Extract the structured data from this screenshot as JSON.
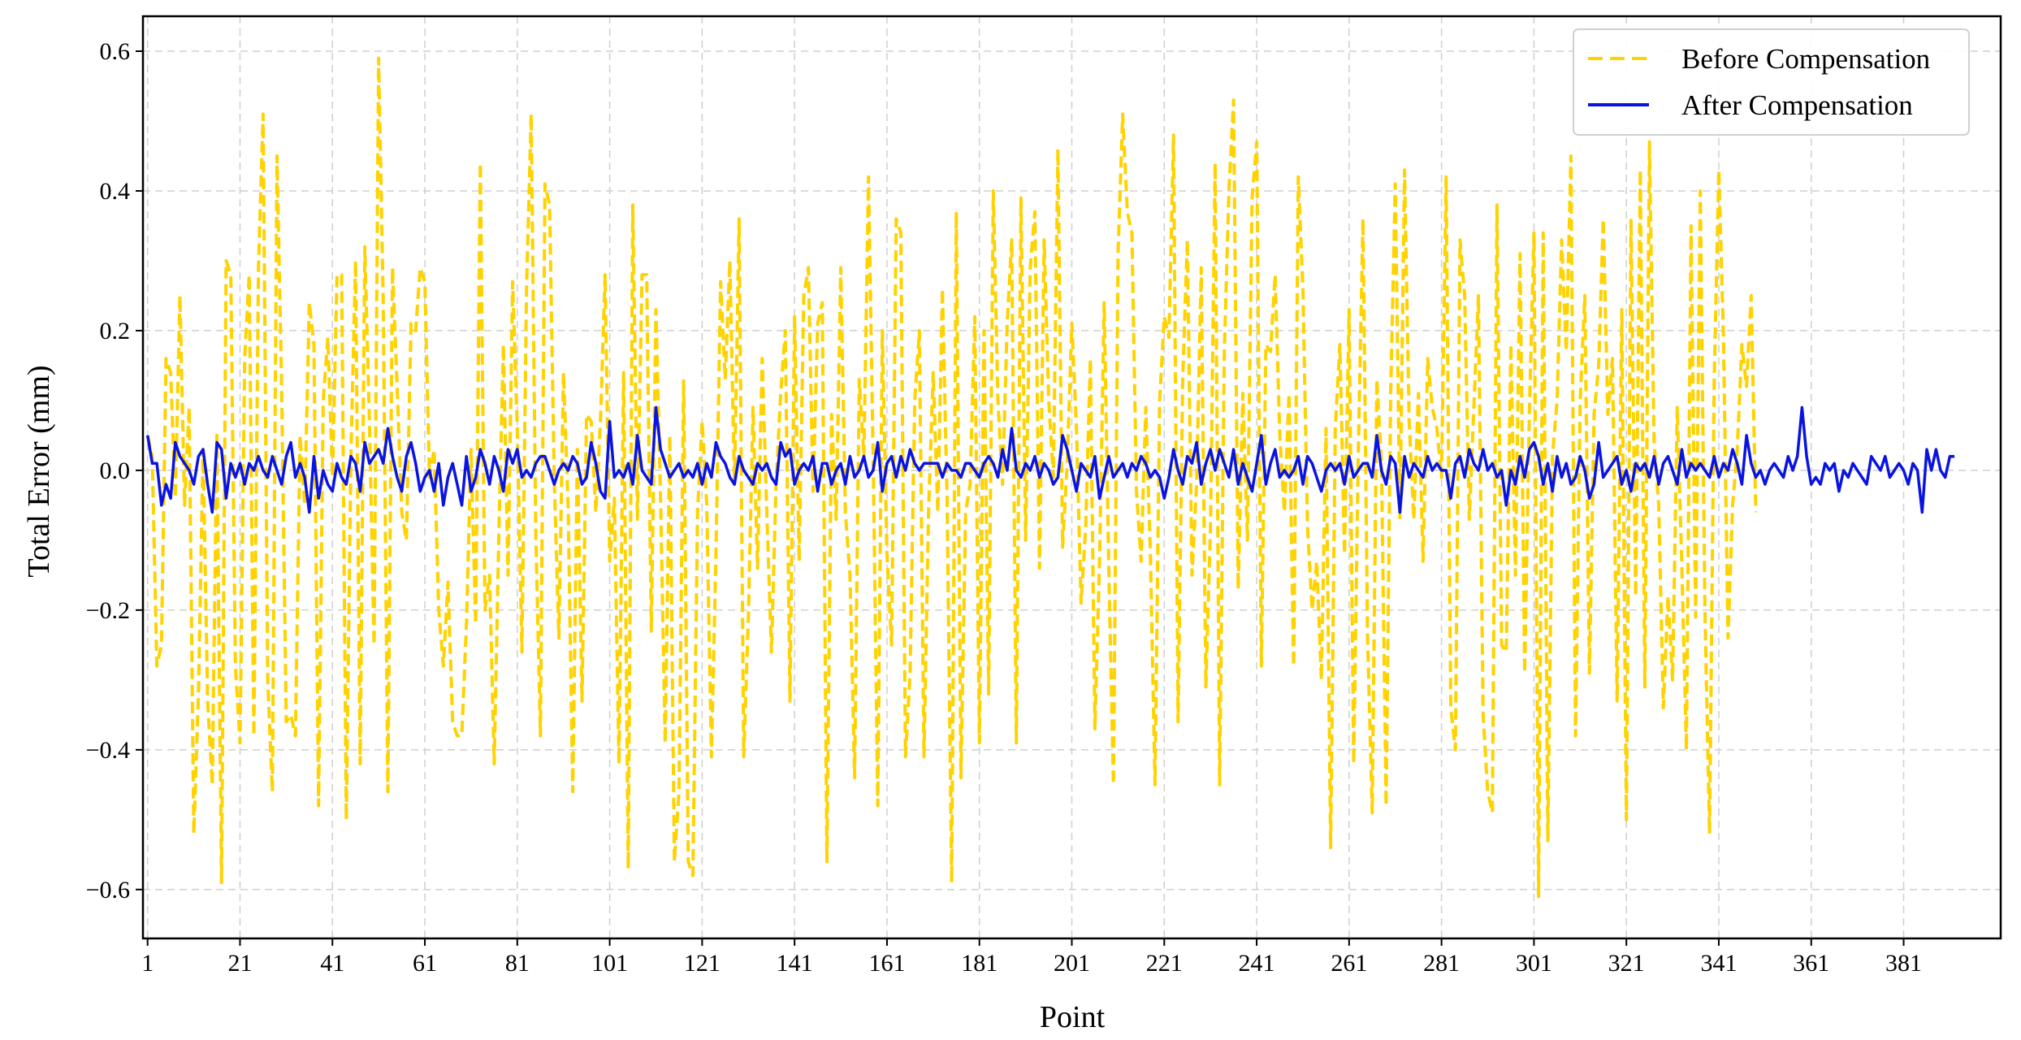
{
  "chart_data": {
    "type": "line",
    "title": "",
    "xlabel": "Point",
    "ylabel": "Total Error (mm)",
    "xlim": [
      0,
      402
    ],
    "ylim": [
      -0.67,
      0.65
    ],
    "x_ticks": [
      1,
      21,
      41,
      61,
      81,
      101,
      121,
      141,
      161,
      181,
      201,
      221,
      241,
      261,
      281,
      301,
      321,
      341,
      361,
      381
    ],
    "y_ticks": [
      -0.6,
      -0.4,
      -0.2,
      0.0,
      0.2,
      0.4,
      0.6
    ],
    "y_tick_labels": [
      "−0.6",
      "−0.4",
      "−0.2",
      "0.0",
      "0.2",
      "0.4",
      "0.6"
    ],
    "grid": true,
    "legend": "top-right",
    "series": [
      {
        "name": "Before Compensation",
        "color": "#FFD200",
        "style": "dashed",
        "x_start": 1,
        "values": [
          0.05,
          0.02,
          -0.28,
          -0.25,
          0.16,
          0.14,
          -0.04,
          0.25,
          -0.05,
          0.09,
          -0.52,
          -0.32,
          0.03,
          -0.33,
          -0.45,
          0.05,
          -0.59,
          0.3,
          0.28,
          -0.28,
          -0.39,
          0.16,
          0.28,
          -0.38,
          0.29,
          0.51,
          -0.3,
          -0.46,
          0.45,
          0.12,
          -0.36,
          -0.35,
          -0.38,
          0.05,
          -0.05,
          0.24,
          0.18,
          -0.48,
          0.1,
          0.19,
          -0.01,
          0.28,
          0.28,
          -0.5,
          0.02,
          0.3,
          -0.42,
          0.32,
          0.07,
          -0.25,
          0.59,
          0.24,
          -0.46,
          0.29,
          0.12,
          -0.06,
          -0.1,
          0.21,
          0.2,
          0.29,
          0.27,
          -0.01,
          0.03,
          -0.2,
          -0.28,
          -0.16,
          -0.36,
          -0.38,
          -0.38,
          -0.22,
          0.03,
          -0.22,
          0.44,
          -0.2,
          -0.15,
          -0.42,
          -0.09,
          0.18,
          -0.15,
          0.27,
          0.06,
          -0.26,
          0.26,
          0.51,
          -0.09,
          -0.38,
          0.41,
          0.38,
          -0.01,
          -0.24,
          0.14,
          -0.05,
          -0.46,
          0.03,
          -0.33,
          0.08,
          0.07,
          -0.06,
          0.07,
          0.28,
          -0.13,
          -0.04,
          -0.42,
          0.14,
          -0.57,
          0.38,
          -0.07,
          0.28,
          0.28,
          -0.23,
          0.23,
          -0.04,
          -0.39,
          0.05,
          -0.56,
          -0.46,
          0.13,
          -0.56,
          -0.58,
          -0.06,
          0.07,
          -0.05,
          -0.41,
          -0.12,
          0.27,
          0.13,
          0.3,
          -0.02,
          0.36,
          -0.41,
          -0.21,
          0.09,
          -0.14,
          0.16,
          -0.06,
          -0.26,
          -0.02,
          0.11,
          0.2,
          -0.33,
          0.22,
          -0.13,
          0.25,
          0.29,
          -0.03,
          0.21,
          0.24,
          -0.56,
          0.08,
          -0.07,
          0.29,
          -0.06,
          -0.15,
          -0.44,
          0.13,
          0.02,
          0.42,
          0.02,
          -0.48,
          0.2,
          -0.12,
          -0.25,
          0.36,
          0.34,
          -0.41,
          -0.29,
          0.1,
          0.2,
          -0.41,
          -0.06,
          0.14,
          -0.06,
          0.26,
          -0.04,
          -0.59,
          0.37,
          -0.44,
          -0.06,
          -0.02,
          0.22,
          -0.39,
          0.2,
          -0.32,
          0.4,
          0.1,
          -0.02,
          0.21,
          0.33,
          -0.39,
          0.39,
          -0.1,
          0.29,
          0.37,
          -0.14,
          0.33,
          0.1,
          -0.01,
          0.46,
          -0.11,
          0.01,
          0.21,
          0.06,
          -0.19,
          -0.08,
          0.16,
          -0.37,
          -0.13,
          0.24,
          -0.14,
          -0.45,
          0.31,
          0.51,
          0.37,
          0.34,
          -0.03,
          -0.13,
          0.09,
          -0.12,
          -0.45,
          0.1,
          0.22,
          0.19,
          0.48,
          -0.36,
          0.13,
          0.33,
          -0.15,
          -0.02,
          0.29,
          -0.31,
          -0.08,
          0.44,
          -0.45,
          0.17,
          0.4,
          0.53,
          -0.17,
          0.11,
          -0.1,
          0.39,
          0.47,
          -0.28,
          0.18,
          0.17,
          0.28,
          0.05,
          -0.06,
          0.11,
          -0.28,
          0.42,
          0.26,
          -0.08,
          -0.2,
          -0.13,
          -0.3,
          0.06,
          -0.54,
          0.06,
          0.18,
          -0.12,
          0.23,
          -0.42,
          0.03,
          0.36,
          -0.24,
          -0.49,
          0.13,
          0.01,
          -0.48,
          0.11,
          0.41,
          -0.07,
          0.43,
          0.07,
          -0.07,
          0.11,
          -0.13,
          0.16,
          0.09,
          0.06,
          -0.01,
          0.42,
          -0.34,
          -0.4,
          0.33,
          0.25,
          -0.07,
          0.09,
          0.25,
          -0.35,
          -0.46,
          -0.49,
          0.38,
          -0.25,
          -0.26,
          0.18,
          -0.15,
          0.31,
          -0.29,
          0.08,
          0.34,
          -0.61,
          0.34,
          -0.53,
          0.02,
          0.1,
          0.33,
          0.17,
          0.45,
          -0.38,
          0.1,
          0.25,
          -0.29,
          0.08,
          0.15,
          0.36,
          0.08,
          0.16,
          -0.33,
          0.23,
          -0.5,
          0.36,
          -0.18,
          0.43,
          -0.31,
          0.47,
          0.04,
          -0.05,
          -0.34,
          -0.18,
          -0.3,
          0.09,
          -0.14,
          -0.4,
          0.35,
          -0.21,
          0.4,
          -0.2,
          -0.52,
          0.13,
          0.43,
          0.19,
          -0.24,
          -0.05,
          0.03,
          0.18,
          0.12,
          0.25,
          -0.06
        ]
      },
      {
        "name": "After Compensation",
        "color": "#0A14E0",
        "style": "solid",
        "x_start": 1,
        "values": [
          0.05,
          0.01,
          0.01,
          -0.05,
          -0.02,
          -0.04,
          0.04,
          0.02,
          0.01,
          0.0,
          -0.02,
          0.02,
          0.03,
          -0.02,
          -0.06,
          0.04,
          0.03,
          -0.04,
          0.01,
          -0.01,
          0.01,
          -0.02,
          0.01,
          0.0,
          0.02,
          0.0,
          -0.01,
          0.02,
          0.0,
          -0.02,
          0.02,
          0.04,
          -0.01,
          0.01,
          -0.01,
          -0.06,
          0.02,
          -0.04,
          0.0,
          -0.02,
          -0.03,
          0.01,
          -0.01,
          -0.02,
          0.02,
          0.01,
          -0.03,
          0.04,
          0.01,
          0.02,
          0.03,
          0.01,
          0.06,
          0.02,
          -0.01,
          -0.03,
          0.02,
          0.04,
          0.01,
          -0.03,
          -0.01,
          0.0,
          -0.03,
          0.01,
          -0.05,
          -0.01,
          0.01,
          -0.02,
          -0.05,
          0.02,
          -0.03,
          -0.01,
          0.03,
          0.01,
          -0.02,
          0.02,
          0.0,
          -0.03,
          0.03,
          0.01,
          0.03,
          -0.01,
          0.0,
          -0.01,
          0.01,
          0.02,
          0.02,
          0.0,
          -0.02,
          0.0,
          0.01,
          0.0,
          0.02,
          0.01,
          -0.02,
          -0.01,
          0.04,
          0.01,
          -0.03,
          -0.04,
          0.07,
          -0.01,
          0.0,
          -0.01,
          0.01,
          -0.02,
          0.05,
          0.0,
          -0.01,
          -0.02,
          0.09,
          0.03,
          0.01,
          -0.01,
          0.0,
          0.01,
          -0.01,
          0.0,
          -0.01,
          0.01,
          -0.02,
          0.01,
          -0.01,
          0.04,
          0.02,
          0.01,
          -0.01,
          -0.02,
          0.02,
          0.0,
          -0.01,
          -0.02,
          0.01,
          0.0,
          0.01,
          -0.01,
          -0.02,
          0.04,
          0.02,
          0.03,
          -0.02,
          0.0,
          0.01,
          0.0,
          0.02,
          -0.03,
          0.01,
          0.01,
          -0.02,
          0.0,
          0.01,
          -0.02,
          0.02,
          -0.01,
          0.0,
          0.02,
          -0.01,
          0.0,
          0.04,
          -0.03,
          0.01,
          0.02,
          -0.01,
          0.02,
          0.0,
          0.03,
          0.01,
          0.0,
          0.01,
          0.01,
          0.01,
          0.01,
          -0.01,
          0.01,
          0.0,
          0.0,
          -0.01,
          0.01,
          0.01,
          0.0,
          -0.01,
          0.01,
          0.02,
          0.01,
          -0.01,
          0.03,
          0.0,
          0.06,
          0.0,
          -0.01,
          0.01,
          0.0,
          0.02,
          -0.01,
          0.01,
          0.0,
          -0.02,
          -0.01,
          0.05,
          0.03,
          0.0,
          -0.03,
          0.01,
          0.0,
          -0.01,
          0.02,
          -0.04,
          -0.01,
          0.02,
          -0.01,
          0.0,
          0.01,
          -0.01,
          0.01,
          0.0,
          0.02,
          0.01,
          -0.01,
          0.0,
          -0.01,
          -0.04,
          -0.01,
          0.03,
          0.0,
          -0.02,
          0.02,
          0.01,
          0.04,
          -0.02,
          0.01,
          0.03,
          0.0,
          0.03,
          0.01,
          -0.01,
          0.03,
          -0.02,
          0.01,
          -0.01,
          -0.03,
          0.01,
          0.05,
          -0.02,
          0.01,
          0.03,
          -0.01,
          0.0,
          -0.01,
          0.0,
          0.02,
          -0.02,
          0.02,
          0.01,
          -0.01,
          -0.03,
          0.0,
          0.01,
          0.0,
          0.01,
          -0.02,
          0.02,
          -0.01,
          0.0,
          0.01,
          0.01,
          -0.01,
          0.05,
          0.0,
          -0.02,
          0.02,
          0.01,
          -0.06,
          0.02,
          -0.01,
          0.01,
          0.0,
          -0.01,
          0.02,
          0.0,
          0.01,
          0.0,
          0.0,
          -0.04,
          0.01,
          0.02,
          -0.01,
          0.03,
          0.01,
          0.0,
          0.03,
          0.0,
          0.01,
          -0.01,
          0.0,
          -0.05,
          0.0,
          -0.02,
          0.02,
          -0.01,
          0.03,
          0.04,
          0.02,
          -0.02,
          0.01,
          -0.03,
          0.02,
          -0.01,
          0.01,
          -0.02,
          -0.01,
          0.02,
          0.0,
          -0.04,
          -0.02,
          0.04,
          -0.01,
          0.0,
          0.01,
          0.02,
          -0.02,
          0.0,
          -0.03,
          0.01,
          0.0,
          0.01,
          -0.01,
          0.02,
          -0.02,
          0.01,
          0.02,
          0.0,
          -0.02,
          0.03,
          -0.01,
          0.01,
          0.0,
          0.01,
          0.0,
          -0.01,
          0.02,
          -0.01,
          0.01,
          0.0,
          0.03,
          0.01,
          -0.02,
          0.05,
          0.01,
          -0.01,
          0.0,
          -0.02,
          0.0,
          0.01,
          0.0,
          -0.01,
          0.02,
          0.0,
          0.02,
          0.09,
          0.02,
          -0.02,
          -0.01,
          -0.02,
          0.01,
          0.0,
          0.01,
          -0.03,
          0.0,
          -0.01,
          0.01,
          0.0,
          -0.01,
          -0.02,
          0.02,
          0.01,
          0.0,
          0.02,
          -0.01,
          0.0,
          0.01,
          0.0,
          -0.02,
          0.01,
          0.0,
          -0.06,
          0.03,
          0.0,
          0.03,
          0.0,
          -0.01,
          0.02,
          0.02
        ]
      }
    ]
  }
}
